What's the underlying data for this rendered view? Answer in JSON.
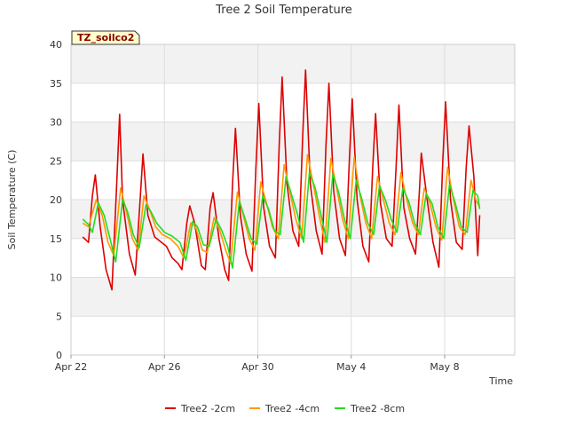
{
  "chart_data": {
    "type": "line",
    "title": "Tree 2 Soil Temperature",
    "xlabel": "Time",
    "ylabel": "Soil Temperature (C)",
    "badge": "TZ_soilco2",
    "xlim": [
      "2024-04-22",
      "2024-05-11"
    ],
    "ylim": [
      0,
      40
    ],
    "yticks": [
      0,
      5,
      10,
      15,
      20,
      25,
      30,
      35,
      40
    ],
    "xticks": [
      {
        "date": "2024-04-22",
        "label": "Apr 22"
      },
      {
        "date": "2024-04-26",
        "label": "Apr 26"
      },
      {
        "date": "2024-04-30",
        "label": "Apr 30"
      },
      {
        "date": "2024-05-04",
        "label": "May 4"
      },
      {
        "date": "2024-05-08",
        "label": "May 8"
      }
    ],
    "grid": true,
    "legend_position": "bottom",
    "series": [
      {
        "name": "Tree2 -2cm",
        "color": "#dd0000",
        "points": [
          [
            "2024-04-22T12:00",
            15.2
          ],
          [
            "2024-04-22T18:00",
            14.5
          ],
          [
            "2024-04-22T22:00",
            20.5
          ],
          [
            "2024-04-23T01:00",
            23.2
          ],
          [
            "2024-04-23T06:00",
            16.5
          ],
          [
            "2024-04-23T12:00",
            11.0
          ],
          [
            "2024-04-23T18:00",
            8.4
          ],
          [
            "2024-04-23T23:00",
            22.0
          ],
          [
            "2024-04-24T02:00",
            31.0
          ],
          [
            "2024-04-24T05:00",
            20.0
          ],
          [
            "2024-04-24T12:00",
            13.0
          ],
          [
            "2024-04-24T18:00",
            10.3
          ],
          [
            "2024-04-24T23:00",
            20.0
          ],
          [
            "2024-04-25T02:00",
            25.9
          ],
          [
            "2024-04-25T07:00",
            18.0
          ],
          [
            "2024-04-25T14:00",
            15.2
          ],
          [
            "2024-04-25T20:00",
            14.6
          ],
          [
            "2024-04-26T02:00",
            14.0
          ],
          [
            "2024-04-26T08:00",
            12.5
          ],
          [
            "2024-04-26T14:00",
            11.8
          ],
          [
            "2024-04-26T18:00",
            11.0
          ],
          [
            "2024-04-26T23:00",
            17.0
          ],
          [
            "2024-04-27T02:00",
            19.2
          ],
          [
            "2024-04-27T07:00",
            17.0
          ],
          [
            "2024-04-27T14:00",
            11.5
          ],
          [
            "2024-04-27T18:00",
            11.0
          ],
          [
            "2024-04-27T23:00",
            19.0
          ],
          [
            "2024-04-28T02:00",
            20.9
          ],
          [
            "2024-04-28T08:00",
            15.0
          ],
          [
            "2024-04-28T14:00",
            11.0
          ],
          [
            "2024-04-28T18:00",
            9.6
          ],
          [
            "2024-04-28T22:00",
            22.0
          ],
          [
            "2024-04-29T01:00",
            29.2
          ],
          [
            "2024-04-29T06:00",
            18.0
          ],
          [
            "2024-04-29T12:00",
            13.0
          ],
          [
            "2024-04-29T18:00",
            10.8
          ],
          [
            "2024-04-29T22:00",
            24.0
          ],
          [
            "2024-04-30T01:00",
            32.4
          ],
          [
            "2024-04-30T06:00",
            19.0
          ],
          [
            "2024-04-30T12:00",
            14.0
          ],
          [
            "2024-04-30T18:00",
            12.5
          ],
          [
            "2024-04-30T22:00",
            27.0
          ],
          [
            "2024-05-01T01:00",
            35.8
          ],
          [
            "2024-05-01T06:00",
            22.0
          ],
          [
            "2024-05-01T12:00",
            16.0
          ],
          [
            "2024-05-01T18:00",
            14.0
          ],
          [
            "2024-05-01T22:00",
            28.0
          ],
          [
            "2024-05-02T01:00",
            36.7
          ],
          [
            "2024-05-02T06:00",
            22.0
          ],
          [
            "2024-05-02T12:00",
            16.0
          ],
          [
            "2024-05-02T18:00",
            13.0
          ],
          [
            "2024-05-02T22:00",
            27.0
          ],
          [
            "2024-05-03T01:00",
            35.0
          ],
          [
            "2024-05-03T06:00",
            21.0
          ],
          [
            "2024-05-03T12:00",
            15.0
          ],
          [
            "2024-05-03T18:00",
            12.8
          ],
          [
            "2024-05-03T22:00",
            25.0
          ],
          [
            "2024-05-04T01:00",
            33.0
          ],
          [
            "2024-05-04T06:00",
            20.0
          ],
          [
            "2024-05-04T12:00",
            14.0
          ],
          [
            "2024-05-04T18:00",
            12.0
          ],
          [
            "2024-05-04T22:00",
            24.0
          ],
          [
            "2024-05-05T01:00",
            31.1
          ],
          [
            "2024-05-05T06:00",
            19.5
          ],
          [
            "2024-05-05T12:00",
            15.0
          ],
          [
            "2024-05-05T18:00",
            14.0
          ],
          [
            "2024-05-05T22:00",
            24.0
          ],
          [
            "2024-05-06T01:00",
            32.2
          ],
          [
            "2024-05-06T06:00",
            19.0
          ],
          [
            "2024-05-06T12:00",
            15.0
          ],
          [
            "2024-05-06T18:00",
            13.0
          ],
          [
            "2024-05-06T22:00",
            21.0
          ],
          [
            "2024-05-07T00:00",
            26.0
          ],
          [
            "2024-05-07T06:00",
            20.0
          ],
          [
            "2024-05-07T12:00",
            14.5
          ],
          [
            "2024-05-07T18:00",
            11.3
          ],
          [
            "2024-05-07T22:00",
            25.0
          ],
          [
            "2024-05-08T01:00",
            32.6
          ],
          [
            "2024-05-08T06:00",
            20.0
          ],
          [
            "2024-05-08T12:00",
            14.5
          ],
          [
            "2024-05-08T18:00",
            13.6
          ],
          [
            "2024-05-08T22:00",
            24.0
          ],
          [
            "2024-05-09T01:00",
            29.5
          ],
          [
            "2024-05-09T06:00",
            23.0
          ],
          [
            "2024-05-09T10:00",
            12.8
          ],
          [
            "2024-05-09T12:00",
            18.0
          ]
        ]
      },
      {
        "name": "Tree2 -4cm",
        "color": "#ff9900",
        "points": [
          [
            "2024-04-22T12:00",
            17.0
          ],
          [
            "2024-04-22T18:00",
            16.5
          ],
          [
            "2024-04-23T02:00",
            20.0
          ],
          [
            "2024-04-23T08:00",
            18.0
          ],
          [
            "2024-04-23T14:00",
            14.5
          ],
          [
            "2024-04-23T20:00",
            12.8
          ],
          [
            "2024-04-24T03:00",
            21.5
          ],
          [
            "2024-04-24T08:00",
            19.0
          ],
          [
            "2024-04-24T15:00",
            15.0
          ],
          [
            "2024-04-24T21:00",
            13.5
          ],
          [
            "2024-04-25T03:00",
            20.5
          ],
          [
            "2024-04-25T08:00",
            19.0
          ],
          [
            "2024-04-25T15:00",
            16.5
          ],
          [
            "2024-04-25T22:00",
            15.5
          ],
          [
            "2024-04-26T06:00",
            15.0
          ],
          [
            "2024-04-26T14:00",
            14.0
          ],
          [
            "2024-04-26T20:00",
            12.5
          ],
          [
            "2024-04-27T03:00",
            17.0
          ],
          [
            "2024-04-27T08:00",
            16.5
          ],
          [
            "2024-04-27T15:00",
            13.5
          ],
          [
            "2024-04-27T20:00",
            13.2
          ],
          [
            "2024-04-28T03:00",
            17.7
          ],
          [
            "2024-04-28T09:00",
            16.0
          ],
          [
            "2024-04-28T15:00",
            13.5
          ],
          [
            "2024-04-28T20:00",
            11.8
          ],
          [
            "2024-04-29T03:00",
            21.0
          ],
          [
            "2024-04-29T09:00",
            18.0
          ],
          [
            "2024-04-29T15:00",
            15.0
          ],
          [
            "2024-04-29T21:00",
            13.5
          ],
          [
            "2024-04-30T03:00",
            22.3
          ],
          [
            "2024-04-30T09:00",
            19.5
          ],
          [
            "2024-04-30T15:00",
            16.5
          ],
          [
            "2024-04-30T21:00",
            15.0
          ],
          [
            "2024-05-01T03:00",
            24.5
          ],
          [
            "2024-05-01T09:00",
            21.0
          ],
          [
            "2024-05-01T15:00",
            17.5
          ],
          [
            "2024-05-01T21:00",
            15.0
          ],
          [
            "2024-05-02T03:00",
            25.8
          ],
          [
            "2024-05-02T09:00",
            22.0
          ],
          [
            "2024-05-02T15:00",
            18.0
          ],
          [
            "2024-05-02T21:00",
            14.5
          ],
          [
            "2024-05-03T03:00",
            25.3
          ],
          [
            "2024-05-03T09:00",
            21.5
          ],
          [
            "2024-05-03T15:00",
            17.5
          ],
          [
            "2024-05-03T21:00",
            15.0
          ],
          [
            "2024-05-04T03:00",
            25.5
          ],
          [
            "2024-05-04T09:00",
            20.5
          ],
          [
            "2024-05-04T15:00",
            17.0
          ],
          [
            "2024-05-04T21:00",
            15.0
          ],
          [
            "2024-05-05T03:00",
            23.0
          ],
          [
            "2024-05-05T09:00",
            20.0
          ],
          [
            "2024-05-05T15:00",
            17.0
          ],
          [
            "2024-05-05T21:00",
            15.5
          ],
          [
            "2024-05-06T03:00",
            23.5
          ],
          [
            "2024-05-06T09:00",
            20.0
          ],
          [
            "2024-05-06T15:00",
            17.0
          ],
          [
            "2024-05-06T21:00",
            15.5
          ],
          [
            "2024-05-07T03:00",
            21.5
          ],
          [
            "2024-05-07T09:00",
            19.5
          ],
          [
            "2024-05-07T15:00",
            16.5
          ],
          [
            "2024-05-07T21:00",
            14.8
          ],
          [
            "2024-05-08T03:00",
            24.2
          ],
          [
            "2024-05-08T09:00",
            20.0
          ],
          [
            "2024-05-08T15:00",
            16.5
          ],
          [
            "2024-05-08T21:00",
            15.5
          ],
          [
            "2024-05-09T03:00",
            22.5
          ],
          [
            "2024-05-09T08:00",
            20.0
          ],
          [
            "2024-05-09T12:00",
            19.0
          ]
        ]
      },
      {
        "name": "Tree2 -8cm",
        "color": "#22dd22",
        "points": [
          [
            "2024-04-22T12:00",
            17.5
          ],
          [
            "2024-04-22T18:00",
            16.8
          ],
          [
            "2024-04-22T22:00",
            15.8
          ],
          [
            "2024-04-23T04:00",
            19.6
          ],
          [
            "2024-04-23T10:00",
            18.0
          ],
          [
            "2024-04-23T16:00",
            15.0
          ],
          [
            "2024-04-23T22:00",
            12.0
          ],
          [
            "2024-04-24T05:00",
            20.0
          ],
          [
            "2024-04-24T10:00",
            18.5
          ],
          [
            "2024-04-24T16:00",
            15.5
          ],
          [
            "2024-04-24T22:00",
            13.8
          ],
          [
            "2024-04-25T05:00",
            19.3
          ],
          [
            "2024-04-25T10:00",
            18.5
          ],
          [
            "2024-04-25T16:00",
            17.0
          ],
          [
            "2024-04-26T00:00",
            15.8
          ],
          [
            "2024-04-26T08:00",
            15.3
          ],
          [
            "2024-04-26T16:00",
            14.5
          ],
          [
            "2024-04-26T22:00",
            12.2
          ],
          [
            "2024-04-27T05:00",
            17.2
          ],
          [
            "2024-04-27T10:00",
            16.5
          ],
          [
            "2024-04-27T16:00",
            14.2
          ],
          [
            "2024-04-27T22:00",
            14.0
          ],
          [
            "2024-04-28T05:00",
            17.5
          ],
          [
            "2024-04-28T11:00",
            16.0
          ],
          [
            "2024-04-28T17:00",
            14.0
          ],
          [
            "2024-04-28T22:00",
            11.2
          ],
          [
            "2024-04-29T05:00",
            19.8
          ],
          [
            "2024-04-29T11:00",
            17.5
          ],
          [
            "2024-04-29T17:00",
            15.0
          ],
          [
            "2024-04-29T23:00",
            14.3
          ],
          [
            "2024-04-30T05:00",
            20.5
          ],
          [
            "2024-04-30T11:00",
            18.8
          ],
          [
            "2024-04-30T17:00",
            16.0
          ],
          [
            "2024-04-30T23:00",
            15.5
          ],
          [
            "2024-05-01T05:00",
            23.0
          ],
          [
            "2024-05-01T11:00",
            20.5
          ],
          [
            "2024-05-01T17:00",
            18.0
          ],
          [
            "2024-05-01T23:00",
            14.5
          ],
          [
            "2024-05-02T05:00",
            23.5
          ],
          [
            "2024-05-02T11:00",
            21.5
          ],
          [
            "2024-05-02T17:00",
            18.0
          ],
          [
            "2024-05-02T23:00",
            14.5
          ],
          [
            "2024-05-03T05:00",
            23.3
          ],
          [
            "2024-05-03T11:00",
            21.0
          ],
          [
            "2024-05-03T17:00",
            17.5
          ],
          [
            "2024-05-03T23:00",
            15.0
          ],
          [
            "2024-05-04T05:00",
            22.5
          ],
          [
            "2024-05-04T11:00",
            20.0
          ],
          [
            "2024-05-04T17:00",
            17.0
          ],
          [
            "2024-05-04T23:00",
            15.5
          ],
          [
            "2024-05-05T05:00",
            21.8
          ],
          [
            "2024-05-05T11:00",
            20.0
          ],
          [
            "2024-05-05T17:00",
            17.5
          ],
          [
            "2024-05-05T23:00",
            15.8
          ],
          [
            "2024-05-06T05:00",
            21.5
          ],
          [
            "2024-05-06T11:00",
            19.8
          ],
          [
            "2024-05-06T17:00",
            17.0
          ],
          [
            "2024-05-06T23:00",
            15.5
          ],
          [
            "2024-05-07T05:00",
            20.8
          ],
          [
            "2024-05-07T11:00",
            19.5
          ],
          [
            "2024-05-07T17:00",
            16.5
          ],
          [
            "2024-05-07T23:00",
            15.0
          ],
          [
            "2024-05-08T05:00",
            22.0
          ],
          [
            "2024-05-08T11:00",
            19.5
          ],
          [
            "2024-05-08T17:00",
            16.5
          ],
          [
            "2024-05-08T23:00",
            15.8
          ],
          [
            "2024-05-09T05:00",
            21.2
          ],
          [
            "2024-05-09T10:00",
            20.5
          ],
          [
            "2024-05-09T12:00",
            18.8
          ]
        ]
      }
    ]
  }
}
